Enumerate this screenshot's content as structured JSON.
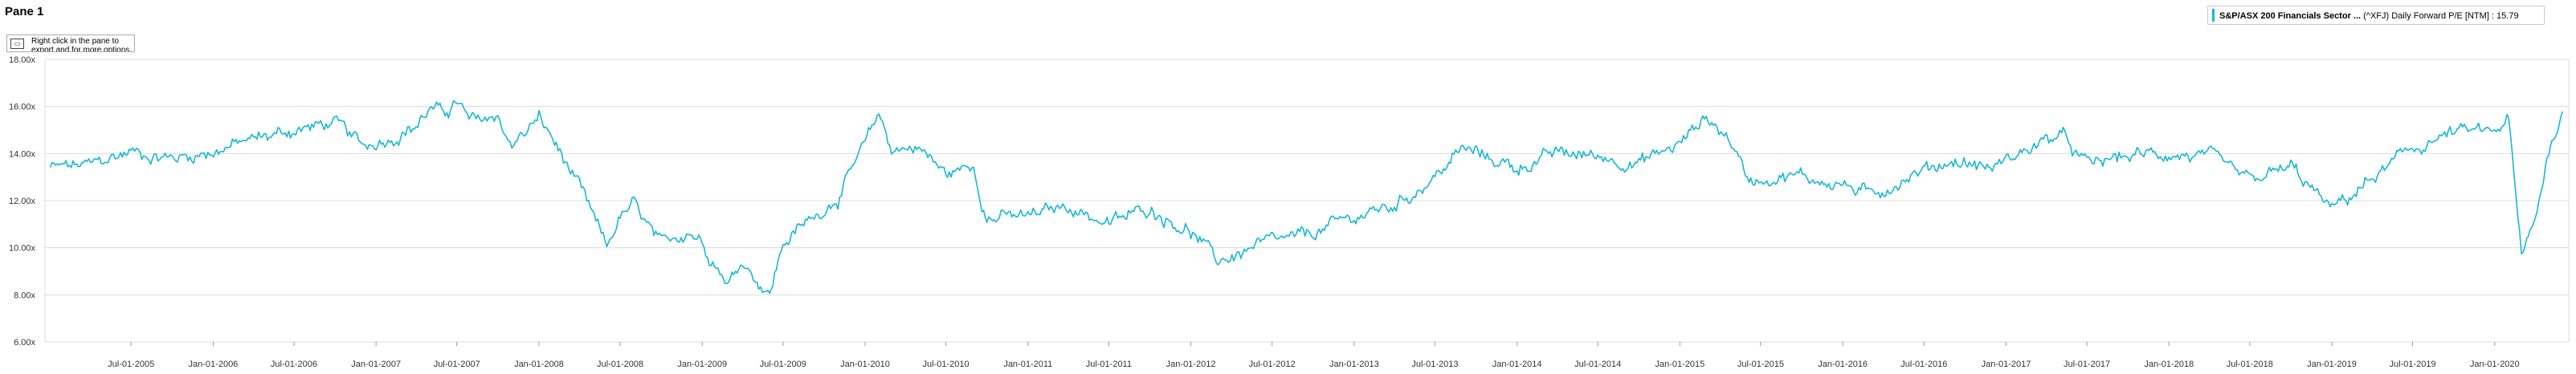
{
  "pane": {
    "title": "Pane 1"
  },
  "hint": {
    "icon": "mouse-icon",
    "text": "Right click in the pane to export and for more options"
  },
  "legend": {
    "series": "S&P/ASX 200 Financials Sector ...",
    "rest": "(^XFJ) Daily Forward P/E [NTM] : 15.79"
  },
  "colors": {
    "line": "#17b7d3",
    "grid": "#dcdcdc",
    "axis": "#9a9a9a"
  },
  "chart_data": {
    "type": "line",
    "series": [
      {
        "name": "S&P/ASX 200 Financials Sector ... (^XFJ) Daily Forward P/E [NTM]",
        "last_value": 15.79,
        "points": [
          [
            "2005-01-01",
            13.4
          ],
          [
            "2005-04-01",
            13.5
          ],
          [
            "2005-07-01",
            14.1
          ],
          [
            "2005-10-01",
            13.8
          ],
          [
            "2006-01-01",
            14.1
          ],
          [
            "2006-04-01",
            14.6
          ],
          [
            "2006-07-01",
            15.0
          ],
          [
            "2006-10-01",
            15.3
          ],
          [
            "2006-12-01",
            14.3
          ],
          [
            "2007-02-01",
            14.7
          ],
          [
            "2007-04-01",
            15.2
          ],
          [
            "2007-05-01",
            15.9
          ],
          [
            "2007-06-01",
            15.7
          ],
          [
            "2007-07-01",
            16.2
          ],
          [
            "2007-08-01",
            15.3
          ],
          [
            "2007-10-01",
            15.6
          ],
          [
            "2007-11-01",
            14.3
          ],
          [
            "2008-01-01",
            15.5
          ],
          [
            "2008-02-01",
            14.6
          ],
          [
            "2008-04-01",
            12.5
          ],
          [
            "2008-06-01",
            10.0
          ],
          [
            "2008-07-01",
            11.3
          ],
          [
            "2008-08-01",
            11.8
          ],
          [
            "2008-10-01",
            10.0
          ],
          [
            "2008-12-01",
            10.8
          ],
          [
            "2009-01-01",
            10.3
          ],
          [
            "2009-03-01",
            8.5
          ],
          [
            "2009-04-01",
            9.5
          ],
          [
            "2009-06-01",
            8.0
          ],
          [
            "2009-07-01",
            10.2
          ],
          [
            "2009-09-01",
            11.2
          ],
          [
            "2009-11-01",
            12.2
          ],
          [
            "2010-01-01",
            14.3
          ],
          [
            "2010-02-01",
            15.7
          ],
          [
            "2010-03-01",
            14.2
          ],
          [
            "2010-05-01",
            14.3
          ],
          [
            "2010-07-01",
            13.1
          ],
          [
            "2010-09-01",
            13.5
          ],
          [
            "2010-10-01",
            11.3
          ],
          [
            "2011-01-01",
            11.3
          ],
          [
            "2011-04-01",
            11.8
          ],
          [
            "2011-07-01",
            11.0
          ],
          [
            "2011-10-01",
            11.7
          ],
          [
            "2012-01-01",
            10.7
          ],
          [
            "2012-03-01",
            9.4
          ],
          [
            "2012-06-01",
            10.1
          ],
          [
            "2012-09-01",
            10.4
          ],
          [
            "2013-01-01",
            11.3
          ],
          [
            "2013-04-01",
            11.8
          ],
          [
            "2013-07-01",
            13.0
          ],
          [
            "2013-09-01",
            14.2
          ],
          [
            "2014-01-01",
            13.4
          ],
          [
            "2014-04-01",
            14.0
          ],
          [
            "2014-07-01",
            13.9
          ],
          [
            "2014-10-01",
            13.6
          ],
          [
            "2015-01-01",
            14.4
          ],
          [
            "2015-03-01",
            15.6
          ],
          [
            "2015-05-01",
            14.4
          ],
          [
            "2015-06-01",
            12.9
          ],
          [
            "2015-09-01",
            13.1
          ],
          [
            "2016-01-01",
            12.7
          ],
          [
            "2016-03-01",
            12.2
          ],
          [
            "2016-06-01",
            13.1
          ],
          [
            "2016-09-01",
            13.7
          ],
          [
            "2016-12-01",
            13.4
          ],
          [
            "2017-03-01",
            14.3
          ],
          [
            "2017-05-01",
            14.8
          ],
          [
            "2017-07-01",
            13.5
          ],
          [
            "2017-10-01",
            13.9
          ],
          [
            "2018-01-01",
            14.0
          ],
          [
            "2018-04-01",
            13.8
          ],
          [
            "2018-07-01",
            12.8
          ],
          [
            "2018-10-01",
            13.4
          ],
          [
            "2019-01-01",
            11.6
          ],
          [
            "2019-04-01",
            12.9
          ],
          [
            "2019-07-01",
            14.2
          ],
          [
            "2019-10-01",
            14.9
          ],
          [
            "2020-01-01",
            14.9
          ],
          [
            "2020-02-01",
            15.5
          ],
          [
            "2020-03-01",
            9.5
          ],
          [
            "2020-04-01",
            11.2
          ],
          [
            "2020-05-01",
            14.2
          ],
          [
            "2020-06-01",
            15.79
          ]
        ]
      }
    ],
    "x_ticks": [
      "Jul-01-2005",
      "Jan-01-2006",
      "Jul-01-2006",
      "Jan-01-2007",
      "Jul-01-2007",
      "Jan-01-2008",
      "Jul-01-2008",
      "Jan-01-2009",
      "Jul-01-2009",
      "Jan-01-2010",
      "Jul-01-2010",
      "Jan-01-2011",
      "Jul-01-2011",
      "Jan-01-2012",
      "Jul-01-2012",
      "Jan-01-2013",
      "Jul-01-2013",
      "Jan-01-2014",
      "Jul-01-2014",
      "Jan-01-2015",
      "Jul-01-2015",
      "Jan-01-2016",
      "Jul-01-2016",
      "Jan-01-2017",
      "Jul-01-2017",
      "Jan-01-2018",
      "Jul-01-2018",
      "Jan-01-2019",
      "Jul-01-2019",
      "Jan-01-2020"
    ],
    "y_ticks": [
      "6.00x",
      "8.00x",
      "10.00x",
      "12.00x",
      "14.00x",
      "16.00x",
      "18.00x"
    ],
    "xlim": [
      "2004-12-20",
      "2020-06-15"
    ],
    "ylim": [
      6,
      18
    ],
    "grid": true,
    "legend_position": "top-right"
  }
}
